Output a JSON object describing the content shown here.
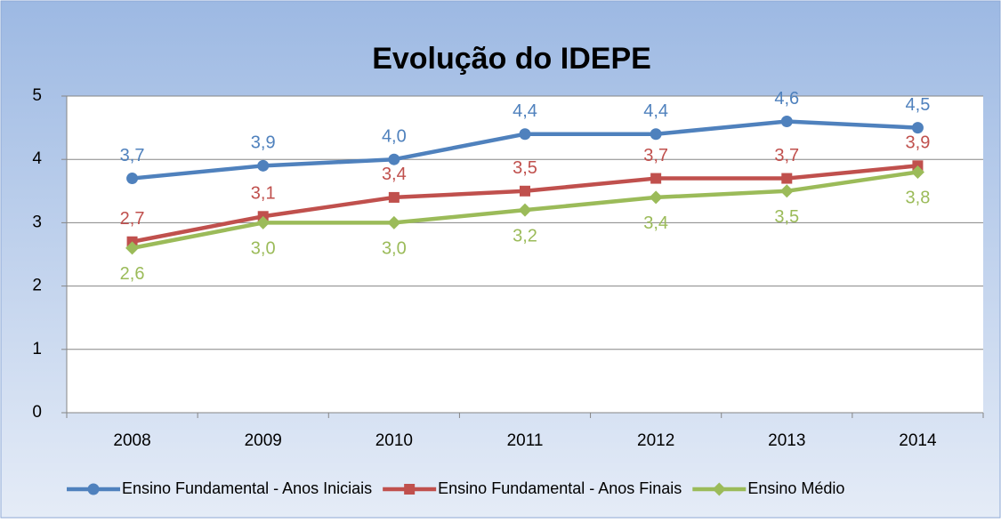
{
  "chart_data": {
    "type": "line",
    "title": "Evolução do IDEPE",
    "categories": [
      "2008",
      "2009",
      "2010",
      "2011",
      "2012",
      "2013",
      "2014"
    ],
    "ylim": [
      0,
      5
    ],
    "yticks": [
      0,
      1,
      2,
      3,
      4,
      5
    ],
    "grid": true,
    "legend": "bottom",
    "series": [
      {
        "name": "Ensino Fundamental - Anos Iniciais",
        "color": "#4f81bd",
        "marker": "circle",
        "label_position": "above",
        "values": [
          3.7,
          3.9,
          4.0,
          4.4,
          4.4,
          4.6,
          4.5
        ],
        "value_labels": [
          "3,7",
          "3,9",
          "4,0",
          "4,4",
          "4,4",
          "4,6",
          "4,5"
        ]
      },
      {
        "name": "Ensino Fundamental - Anos Finais",
        "color": "#c0504d",
        "marker": "square",
        "label_position": "above",
        "values": [
          2.7,
          3.1,
          3.4,
          3.5,
          3.7,
          3.7,
          3.9
        ],
        "value_labels": [
          "2,7",
          "3,1",
          "3,4",
          "3,5",
          "3,7",
          "3,7",
          "3,9"
        ]
      },
      {
        "name": "Ensino Médio",
        "color": "#9bbb59",
        "marker": "diamond",
        "label_position": "below",
        "values": [
          2.6,
          3.0,
          3.0,
          3.2,
          3.4,
          3.5,
          3.8
        ],
        "value_labels": [
          "2,6",
          "3,0",
          "3,0",
          "3,2",
          "3,4",
          "3,5",
          "3,8"
        ]
      }
    ]
  }
}
